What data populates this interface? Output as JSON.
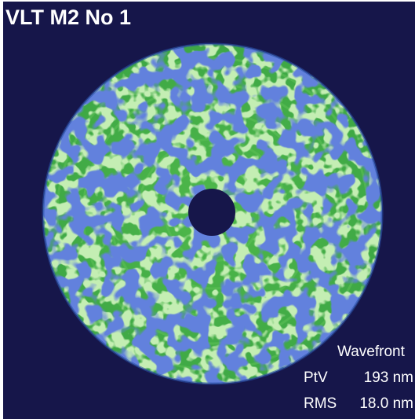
{
  "title": "VLT M2 No 1",
  "info": {
    "label": "Wavefront",
    "ptv_label": "PtV",
    "ptv_value": "193 nm",
    "rms_label": "RMS",
    "rms_value": "18.0 nm"
  }
}
